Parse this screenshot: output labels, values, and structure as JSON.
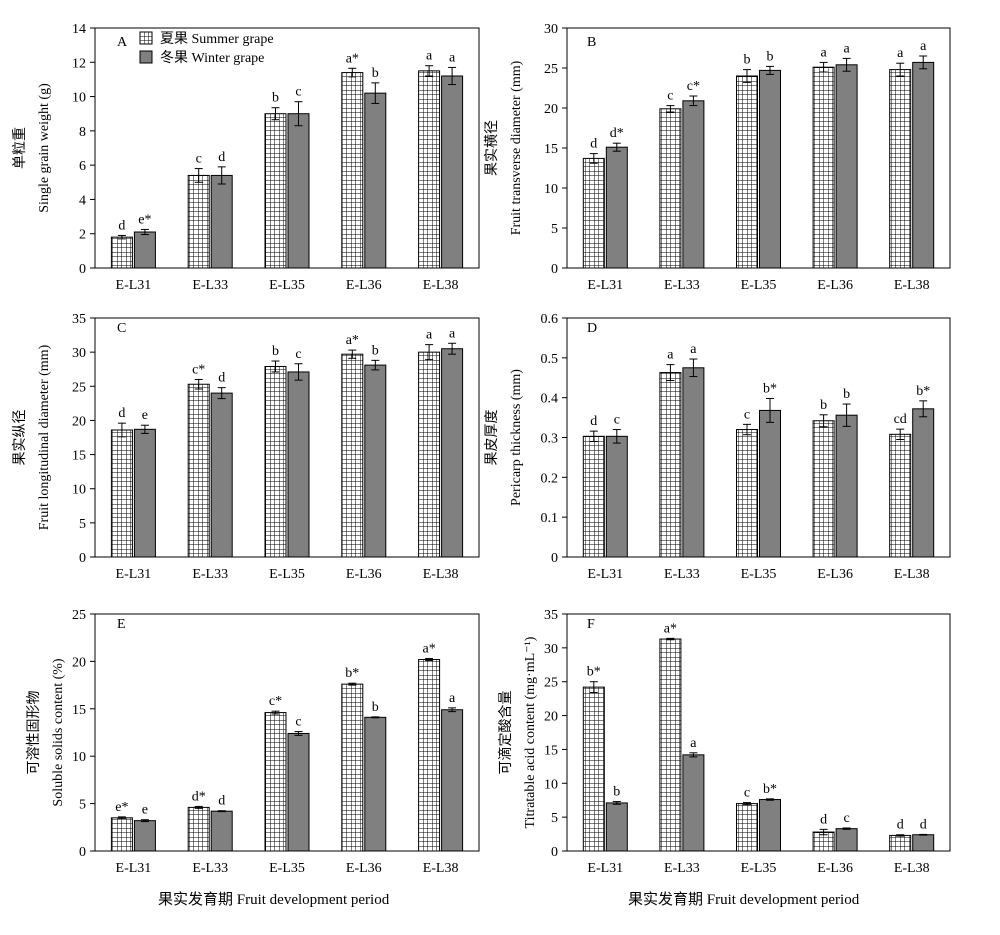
{
  "legend": {
    "summer": "夏果 Summer grape",
    "winter": "冬果 Winter grape"
  },
  "bottom_xlabel_left": "果实发育期 Fruit development period",
  "bottom_xlabel_right": "果实发育期 Fruit development period",
  "colors": {
    "summer_fill": "#ffffff",
    "summer_grid": "#000000",
    "winter_fill": "#808080"
  },
  "chart_data": [
    {
      "type": "bar",
      "panel": "A",
      "title": "",
      "ylabel_cn": "单粒重",
      "ylabel_en": "Single grain weight (g)",
      "xlabel": "",
      "categories": [
        "E-L31",
        "E-L33",
        "E-L35",
        "E-L36",
        "E-L38"
      ],
      "ylim": [
        0,
        14
      ],
      "yticks": [
        0,
        2,
        4,
        6,
        8,
        10,
        12,
        14
      ],
      "ytick_labels": [
        "0",
        "2",
        "4",
        "6",
        "8",
        "10",
        "12",
        "14"
      ],
      "series": [
        {
          "name": "夏果 Summer grape",
          "values": [
            1.8,
            5.4,
            9.0,
            11.4,
            11.5
          ],
          "errors": [
            0.1,
            0.4,
            0.35,
            0.25,
            0.3
          ],
          "labels": [
            "d",
            "c",
            "b",
            "a*",
            "a"
          ]
        },
        {
          "name": "冬果 Winter grape",
          "values": [
            2.1,
            5.4,
            9.0,
            10.2,
            11.2
          ],
          "errors": [
            0.15,
            0.5,
            0.7,
            0.6,
            0.5
          ],
          "labels": [
            "e*",
            "d",
            "c",
            "b",
            "a"
          ]
        }
      ]
    },
    {
      "type": "bar",
      "panel": "B",
      "title": "",
      "ylabel_cn": "果实横径",
      "ylabel_en": "Fruit transverse diameter (mm)",
      "xlabel": "",
      "categories": [
        "E-L31",
        "E-L33",
        "E-L35",
        "E-L36",
        "E-L38"
      ],
      "ylim": [
        0,
        30
      ],
      "yticks": [
        0,
        5,
        10,
        15,
        20,
        25,
        30
      ],
      "ytick_labels": [
        "0",
        "5",
        "10",
        "15",
        "20",
        "25",
        "30"
      ],
      "series": [
        {
          "name": "夏果 Summer grape",
          "values": [
            13.7,
            19.9,
            24.0,
            25.1,
            24.8
          ],
          "errors": [
            0.6,
            0.4,
            0.8,
            0.6,
            0.8
          ],
          "labels": [
            "d",
            "c",
            "b",
            "a",
            "a"
          ]
        },
        {
          "name": "冬果 Winter grape",
          "values": [
            15.1,
            20.9,
            24.7,
            25.4,
            25.7
          ],
          "errors": [
            0.5,
            0.6,
            0.5,
            0.8,
            0.8
          ],
          "labels": [
            "d*",
            "c*",
            "b",
            "a",
            "a"
          ]
        }
      ]
    },
    {
      "type": "bar",
      "panel": "C",
      "title": "",
      "ylabel_cn": "果实纵径",
      "ylabel_en": "Fruit longitudinal diameter (mm)",
      "xlabel": "",
      "categories": [
        "E-L31",
        "E-L33",
        "E-L35",
        "E-L36",
        "E-L38"
      ],
      "ylim": [
        0,
        35
      ],
      "yticks": [
        0,
        5,
        10,
        15,
        20,
        25,
        30,
        35
      ],
      "ytick_labels": [
        "0",
        "5",
        "10",
        "15",
        "20",
        "25",
        "30",
        "35"
      ],
      "series": [
        {
          "name": "夏果 Summer grape",
          "values": [
            18.6,
            25.3,
            27.9,
            29.7,
            30.0
          ],
          "errors": [
            1.0,
            0.7,
            0.8,
            0.6,
            1.1
          ],
          "labels": [
            "d",
            "c*",
            "b",
            "a*",
            "a"
          ]
        },
        {
          "name": "冬果 Winter grape",
          "values": [
            18.7,
            24.0,
            27.1,
            28.1,
            30.5
          ],
          "errors": [
            0.6,
            0.8,
            1.2,
            0.7,
            0.8
          ],
          "labels": [
            "e",
            "d",
            "c",
            "b",
            "a"
          ]
        }
      ]
    },
    {
      "type": "bar",
      "panel": "D",
      "title": "",
      "ylabel_cn": "果皮厚度",
      "ylabel_en": "Pericarp thickness (mm)",
      "xlabel": "",
      "categories": [
        "E-L31",
        "E-L33",
        "E-L35",
        "E-L36",
        "E-L38"
      ],
      "ylim": [
        0,
        0.6
      ],
      "yticks": [
        0,
        0.1,
        0.2,
        0.3,
        0.4,
        0.5,
        0.6
      ],
      "ytick_labels": [
        "0",
        "0.1",
        "0.2",
        "0.3",
        "0.4",
        "0.5",
        "0.6"
      ],
      "series": [
        {
          "name": "夏果 Summer grape",
          "values": [
            0.303,
            0.463,
            0.32,
            0.342,
            0.308
          ],
          "errors": [
            0.013,
            0.02,
            0.013,
            0.015,
            0.013
          ],
          "labels": [
            "d",
            "a",
            "c",
            "b",
            "cd"
          ]
        },
        {
          "name": "冬果 Winter grape",
          "values": [
            0.303,
            0.475,
            0.368,
            0.356,
            0.372
          ],
          "errors": [
            0.017,
            0.022,
            0.03,
            0.028,
            0.02
          ],
          "labels": [
            "c",
            "a",
            "b*",
            "b",
            "b*"
          ]
        }
      ]
    },
    {
      "type": "bar",
      "panel": "E",
      "title": "",
      "ylabel_cn": "可溶性固形物",
      "ylabel_en": "Soluble solids content (%)",
      "xlabel": "",
      "categories": [
        "E-L31",
        "E-L33",
        "E-L35",
        "E-L36",
        "E-L38"
      ],
      "ylim": [
        0,
        25
      ],
      "yticks": [
        0,
        5,
        10,
        15,
        20,
        25
      ],
      "ytick_labels": [
        "0",
        "5",
        "10",
        "15",
        "20",
        "25"
      ],
      "series": [
        {
          "name": "夏果 Summer grape",
          "values": [
            3.5,
            4.6,
            14.6,
            17.6,
            20.2
          ],
          "errors": [
            0.1,
            0.1,
            0.15,
            0.1,
            0.1
          ],
          "labels": [
            "e*",
            "d*",
            "c*",
            "b*",
            "a*"
          ]
        },
        {
          "name": "冬果 Winter grape",
          "values": [
            3.2,
            4.2,
            12.4,
            14.1,
            14.9
          ],
          "errors": [
            0.1,
            0.05,
            0.2,
            0.05,
            0.2
          ],
          "labels": [
            "e",
            "d",
            "c",
            "b",
            "a"
          ]
        }
      ]
    },
    {
      "type": "bar",
      "panel": "F",
      "title": "",
      "ylabel_cn": "可滴定酸含量",
      "ylabel_en": "Titratable acid content (mg·mL⁻¹)",
      "xlabel": "",
      "categories": [
        "E-L31",
        "E-L33",
        "E-L35",
        "E-L36",
        "E-L38"
      ],
      "ylim": [
        0,
        35
      ],
      "yticks": [
        0,
        5,
        10,
        15,
        20,
        25,
        30,
        35
      ],
      "ytick_labels": [
        "0",
        "5",
        "10",
        "15",
        "20",
        "25",
        "30",
        "35"
      ],
      "series": [
        {
          "name": "夏果 Summer grape",
          "values": [
            24.2,
            31.3,
            7.0,
            2.8,
            2.3
          ],
          "errors": [
            0.8,
            0.1,
            0.15,
            0.4,
            0.1
          ],
          "labels": [
            "b*",
            "a*",
            "c",
            "d",
            "d"
          ]
        },
        {
          "name": "冬果 Winter grape",
          "values": [
            7.1,
            14.2,
            7.6,
            3.3,
            2.4
          ],
          "errors": [
            0.2,
            0.3,
            0.1,
            0.1,
            0.05
          ],
          "labels": [
            "b",
            "a",
            "b*",
            "c",
            "d"
          ]
        }
      ]
    }
  ]
}
